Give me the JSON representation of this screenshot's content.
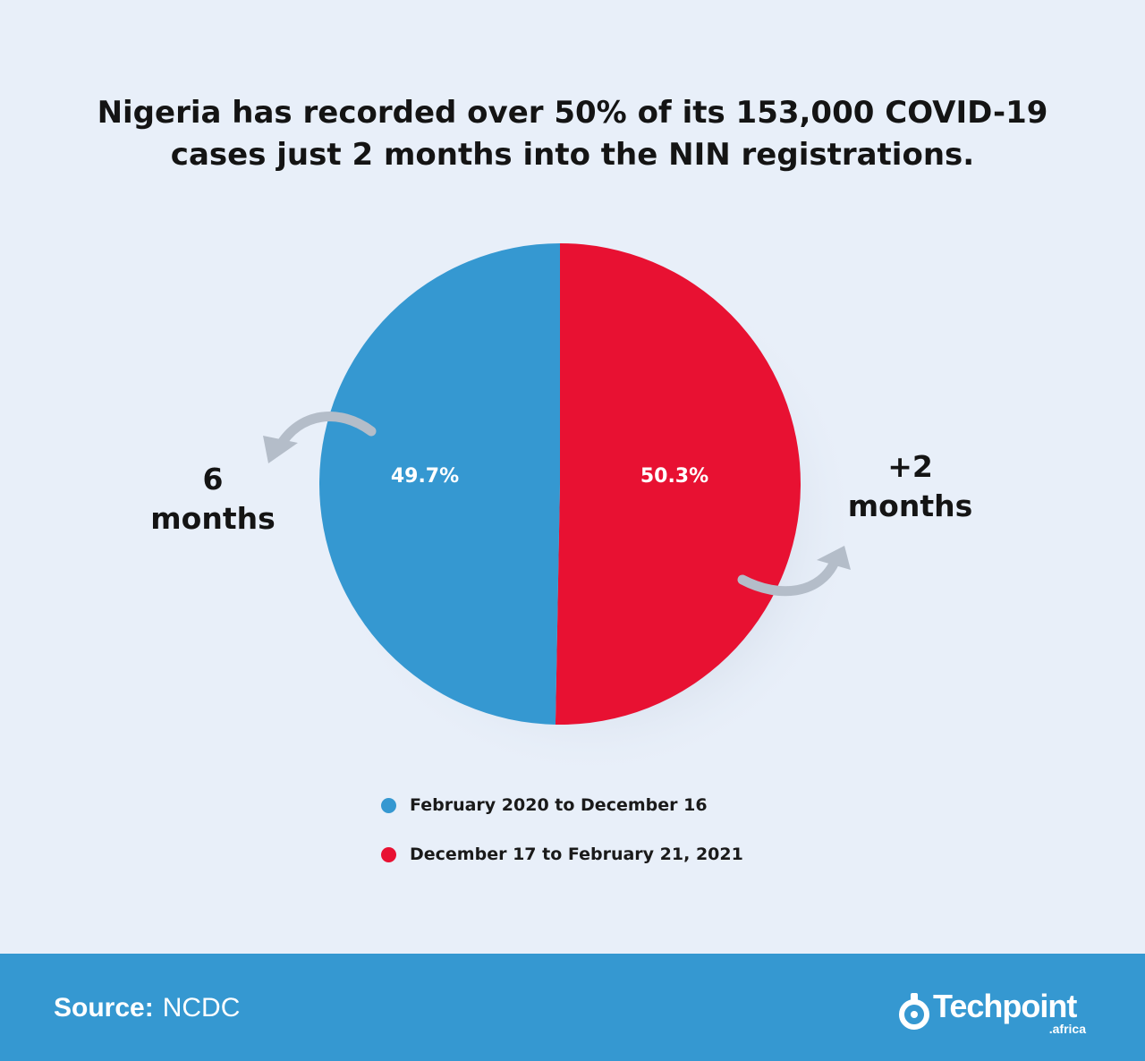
{
  "title": {
    "line1": "Nigeria has recorded over 50% of its 153,000 COVID-19",
    "line2": "cases just 2 months into the NIN registrations."
  },
  "chart_data": {
    "type": "pie",
    "title": "Nigeria has recorded over 50% of its 153,000 COVID-19 cases just 2 months into the NIN registrations.",
    "categories": [
      "February 2020 to December 16",
      "December 17 to February 21, 2021"
    ],
    "values": [
      49.7,
      50.3
    ],
    "data_labels": [
      "49.7%",
      "50.3%"
    ],
    "colors": [
      "#3598d1",
      "#e81132"
    ],
    "legend_position": "bottom",
    "annotations": [
      {
        "line1": "6",
        "line2": "months",
        "attached_to": "February 2020 to December 16"
      },
      {
        "line1": "+2",
        "line2": "months",
        "attached_to": "December 17 to February 21, 2021"
      }
    ]
  },
  "footer": {
    "source_label": "Source:",
    "source_value": "NCDC",
    "logo_text": "Techpoint",
    "logo_subtext": ".africa",
    "background": "#3598d1"
  },
  "icons": {
    "left_arrow": "curved-arrow-left-icon",
    "right_arrow": "curved-arrow-right-icon",
    "logo_mark": "techpoint-logo-icon"
  }
}
